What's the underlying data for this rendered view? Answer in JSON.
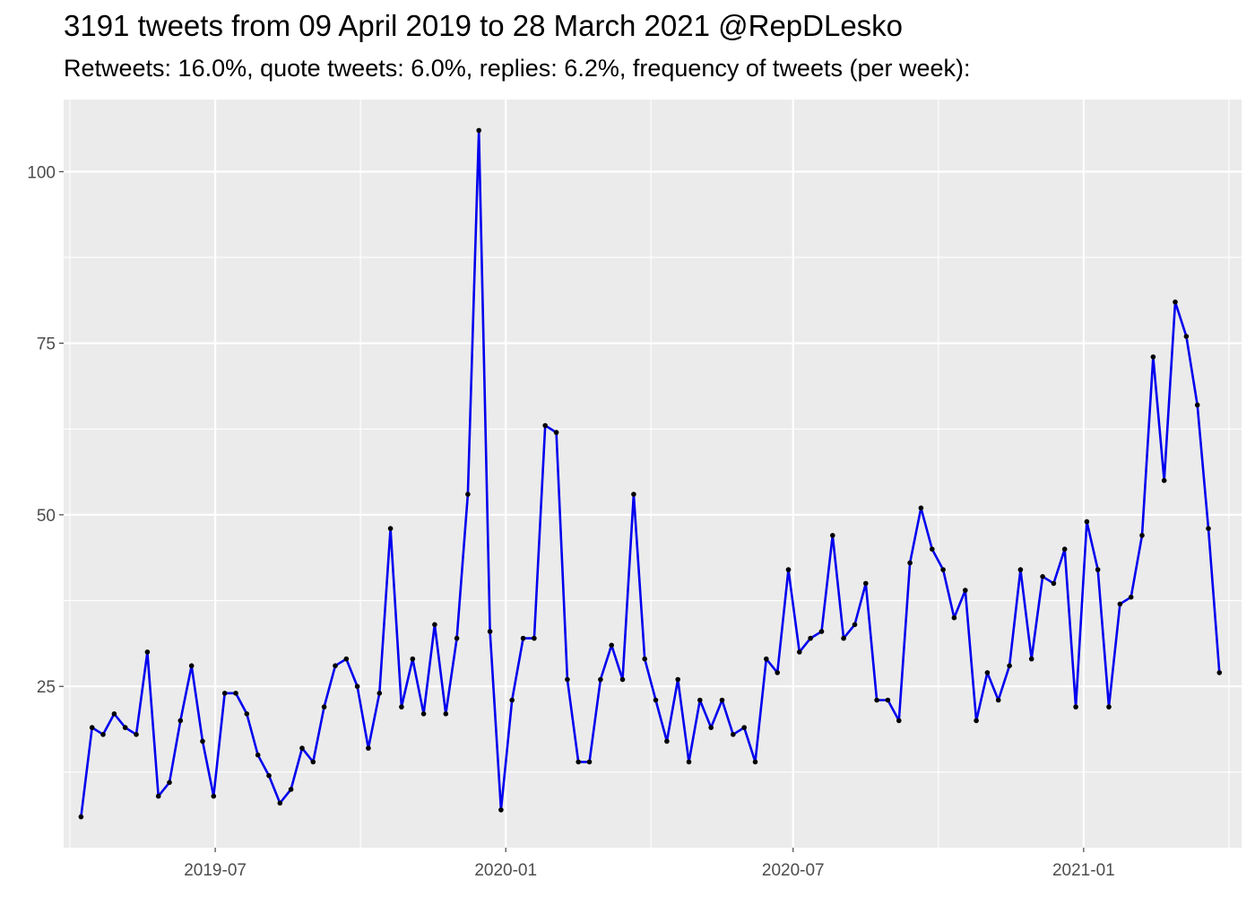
{
  "chart_data": {
    "type": "line",
    "title": "3191 tweets from 09 April 2019 to 28 March 2021 @RepDLesko",
    "subtitle": "Retweets: 16.0%, quote tweets: 6.0%, replies: 6.2%, frequency of tweets (per week):",
    "xlabel": "",
    "ylabel": "",
    "x_type": "date",
    "xlim": [
      "2019-03-27",
      "2021-04-11"
    ],
    "ylim": [
      1.5,
      110.5
    ],
    "y_ticks": [
      25,
      50,
      75,
      100
    ],
    "x_ticks": [
      "2019-07-01",
      "2020-01-01",
      "2020-07-01",
      "2021-01-01"
    ],
    "x_tick_labels": [
      "2019-07",
      "2020-01",
      "2020-07",
      "2021-01"
    ],
    "grid": true,
    "colors": {
      "line": "#0000ee",
      "points": "#000000",
      "panel_background": "#ebebeb",
      "grid": "#ffffff",
      "tick_label": "#4d4d4d"
    },
    "series": [
      {
        "x": [
          "2019-04-07",
          "2019-04-14",
          "2019-04-21",
          "2019-04-28",
          "2019-05-05",
          "2019-05-12",
          "2019-05-19",
          "2019-05-26",
          "2019-06-02",
          "2019-06-09",
          "2019-06-16",
          "2019-06-23",
          "2019-06-30",
          "2019-07-07",
          "2019-07-14",
          "2019-07-21",
          "2019-07-28",
          "2019-08-04",
          "2019-08-11",
          "2019-08-18",
          "2019-08-25",
          "2019-09-01",
          "2019-09-08",
          "2019-09-15",
          "2019-09-22",
          "2019-09-29",
          "2019-10-06",
          "2019-10-13",
          "2019-10-20",
          "2019-10-27",
          "2019-11-03",
          "2019-11-10",
          "2019-11-17",
          "2019-11-24",
          "2019-12-01",
          "2019-12-08",
          "2019-12-15",
          "2019-12-22",
          "2019-12-29",
          "2020-01-05",
          "2020-01-12",
          "2020-01-19",
          "2020-01-26",
          "2020-02-02",
          "2020-02-09",
          "2020-02-16",
          "2020-02-23",
          "2020-03-01",
          "2020-03-08",
          "2020-03-15",
          "2020-03-22",
          "2020-03-29",
          "2020-04-05",
          "2020-04-12",
          "2020-04-19",
          "2020-04-26",
          "2020-05-03",
          "2020-05-10",
          "2020-05-17",
          "2020-05-24",
          "2020-05-31",
          "2020-06-07",
          "2020-06-14",
          "2020-06-21",
          "2020-06-28",
          "2020-07-05",
          "2020-07-12",
          "2020-07-19",
          "2020-07-26",
          "2020-08-02",
          "2020-08-09",
          "2020-08-16",
          "2020-08-23",
          "2020-08-30",
          "2020-09-06",
          "2020-09-13",
          "2020-09-20",
          "2020-09-27",
          "2020-10-04",
          "2020-10-11",
          "2020-10-18",
          "2020-10-25",
          "2020-11-01",
          "2020-11-08",
          "2020-11-15",
          "2020-11-22",
          "2020-11-29",
          "2020-12-06",
          "2020-12-13",
          "2020-12-20",
          "2020-12-27",
          "2021-01-03",
          "2021-01-10",
          "2021-01-17",
          "2021-01-24",
          "2021-01-31",
          "2021-02-07",
          "2021-02-14",
          "2021-02-21",
          "2021-02-28",
          "2021-03-07",
          "2021-03-14",
          "2021-03-21",
          "2021-03-28"
        ],
        "values": [
          6,
          19,
          18,
          21,
          19,
          18,
          30,
          9,
          11,
          20,
          28,
          17,
          9,
          24,
          24,
          21,
          15,
          12,
          8,
          10,
          16,
          14,
          22,
          28,
          29,
          25,
          16,
          24,
          48,
          22,
          29,
          21,
          34,
          21,
          32,
          53,
          106,
          33,
          7,
          23,
          32,
          32,
          63,
          62,
          26,
          14,
          14,
          26,
          31,
          26,
          53,
          29,
          23,
          17,
          26,
          14,
          23,
          19,
          23,
          18,
          19,
          14,
          29,
          27,
          42,
          30,
          32,
          33,
          47,
          32,
          34,
          40,
          23,
          23,
          20,
          43,
          51,
          45,
          42,
          35,
          39,
          20,
          27,
          23,
          28,
          42,
          29,
          41,
          40,
          45,
          22,
          49,
          42,
          22,
          37,
          38,
          47,
          73,
          55,
          81,
          76,
          66,
          48,
          27
        ]
      }
    ]
  }
}
